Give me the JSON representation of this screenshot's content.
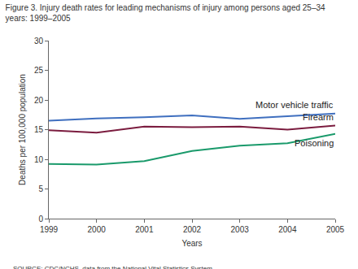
{
  "chart_data": {
    "type": "line",
    "title": "Figure 3. Injury death rates for leading mechanisms of injury among persons aged 25–34\nyears: 1999–2005",
    "x_label": "Years",
    "y_label": "Deaths per 100,000 population",
    "annotations": [
      "SOURCE: CDC/NCHS, data from the National Vital Statistics System."
    ],
    "x": [
      1999,
      2000,
      2001,
      2002,
      2003,
      2004,
      2005
    ],
    "xlim": [
      1999,
      2005
    ],
    "xticks": [
      1999,
      2000,
      2001,
      2002,
      2003,
      2004,
      2005
    ],
    "ylim": [
      0,
      30
    ],
    "yticks": [
      0,
      5,
      10,
      15,
      20,
      25,
      30
    ],
    "grid": false,
    "series": [
      {
        "name": "Motor vehicle traffic",
        "color": "#3f6fbf",
        "line_style": "solid",
        "values": [
          16.5,
          16.9,
          17.1,
          17.4,
          16.8,
          17.2,
          17.7
        ]
      },
      {
        "name": "Firearm",
        "color": "#7b1c3f",
        "line_style": "solid",
        "values": [
          14.9,
          14.5,
          15.5,
          15.4,
          15.5,
          15.0,
          15.7
        ]
      },
      {
        "name": "Poisoning",
        "color": "#1a9a6b",
        "line_style": "solid",
        "values": [
          9.2,
          9.1,
          9.7,
          11.4,
          12.3,
          12.7,
          14.3
        ]
      }
    ]
  }
}
